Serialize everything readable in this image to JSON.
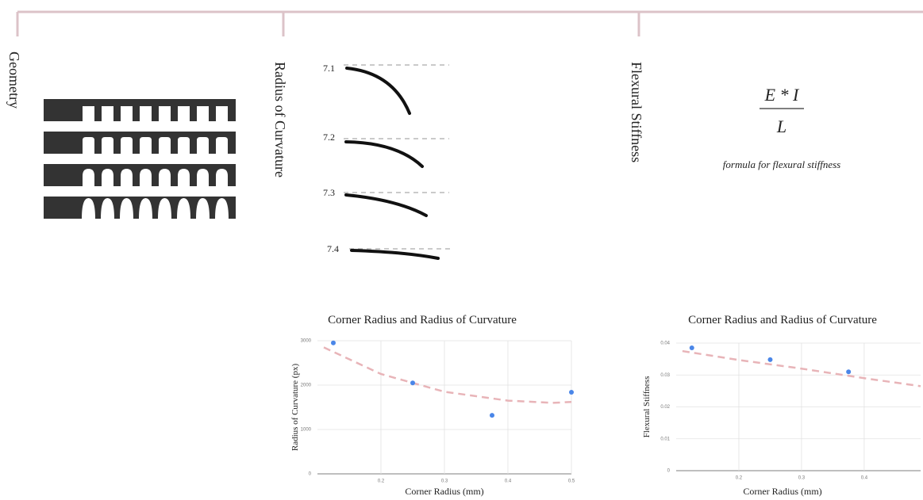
{
  "sections": [
    {
      "label": "Geometry"
    },
    {
      "label": "Radius of Curvature",
      "samples": [
        "7.1",
        "7.2",
        "7.3",
        "7.4"
      ]
    },
    {
      "label": "Flexural Stiffness",
      "formula": {
        "numerator": "E * I",
        "denominator": "L"
      },
      "caption": "formula for flexural stiffness"
    }
  ],
  "chart_data": [
    {
      "type": "scatter",
      "title": "Corner Radius and Radius of Curvature",
      "x_label": "Corner Radius (mm)",
      "y_label": "Radius of Curvature (px)",
      "x": [
        0.125,
        0.25,
        0.375,
        0.5
      ],
      "values": [
        2950,
        2050,
        1320,
        1840
      ],
      "color": "#4a86e8",
      "trendline": {
        "x": [
          0.11,
          0.2,
          0.3,
          0.4,
          0.47,
          0.5
        ],
        "values": [
          2850,
          2250,
          1850,
          1650,
          1600,
          1620
        ],
        "color": "#e8b4b8"
      },
      "xlim": [
        0.1,
        0.5
      ],
      "xticks": [
        0.2,
        0.3,
        0.4,
        0.5
      ],
      "ylim": [
        0,
        3000
      ],
      "yticks": [
        0,
        1000,
        2000,
        3000
      ],
      "grid": true
    },
    {
      "type": "scatter",
      "title": "Corner Radius and Radius of Curvature",
      "x_label": "Corner Radius (mm)",
      "y_label": "Flexural Stiffness",
      "x": [
        0.125,
        0.25,
        0.375
      ],
      "values": [
        0.0385,
        0.0348,
        0.031
      ],
      "color": "#4a86e8",
      "trendline": {
        "x": [
          0.11,
          0.2,
          0.3,
          0.4,
          0.49
        ],
        "values": [
          0.0375,
          0.0347,
          0.032,
          0.029,
          0.0265
        ],
        "color": "#e8b4b8"
      },
      "xlim": [
        0.1,
        0.49
      ],
      "xticks": [
        0.2,
        0.3,
        0.4
      ],
      "ylim": [
        0,
        0.04
      ],
      "yticks": [
        0,
        0.01,
        0.02,
        0.03,
        0.04
      ],
      "grid": true
    }
  ]
}
